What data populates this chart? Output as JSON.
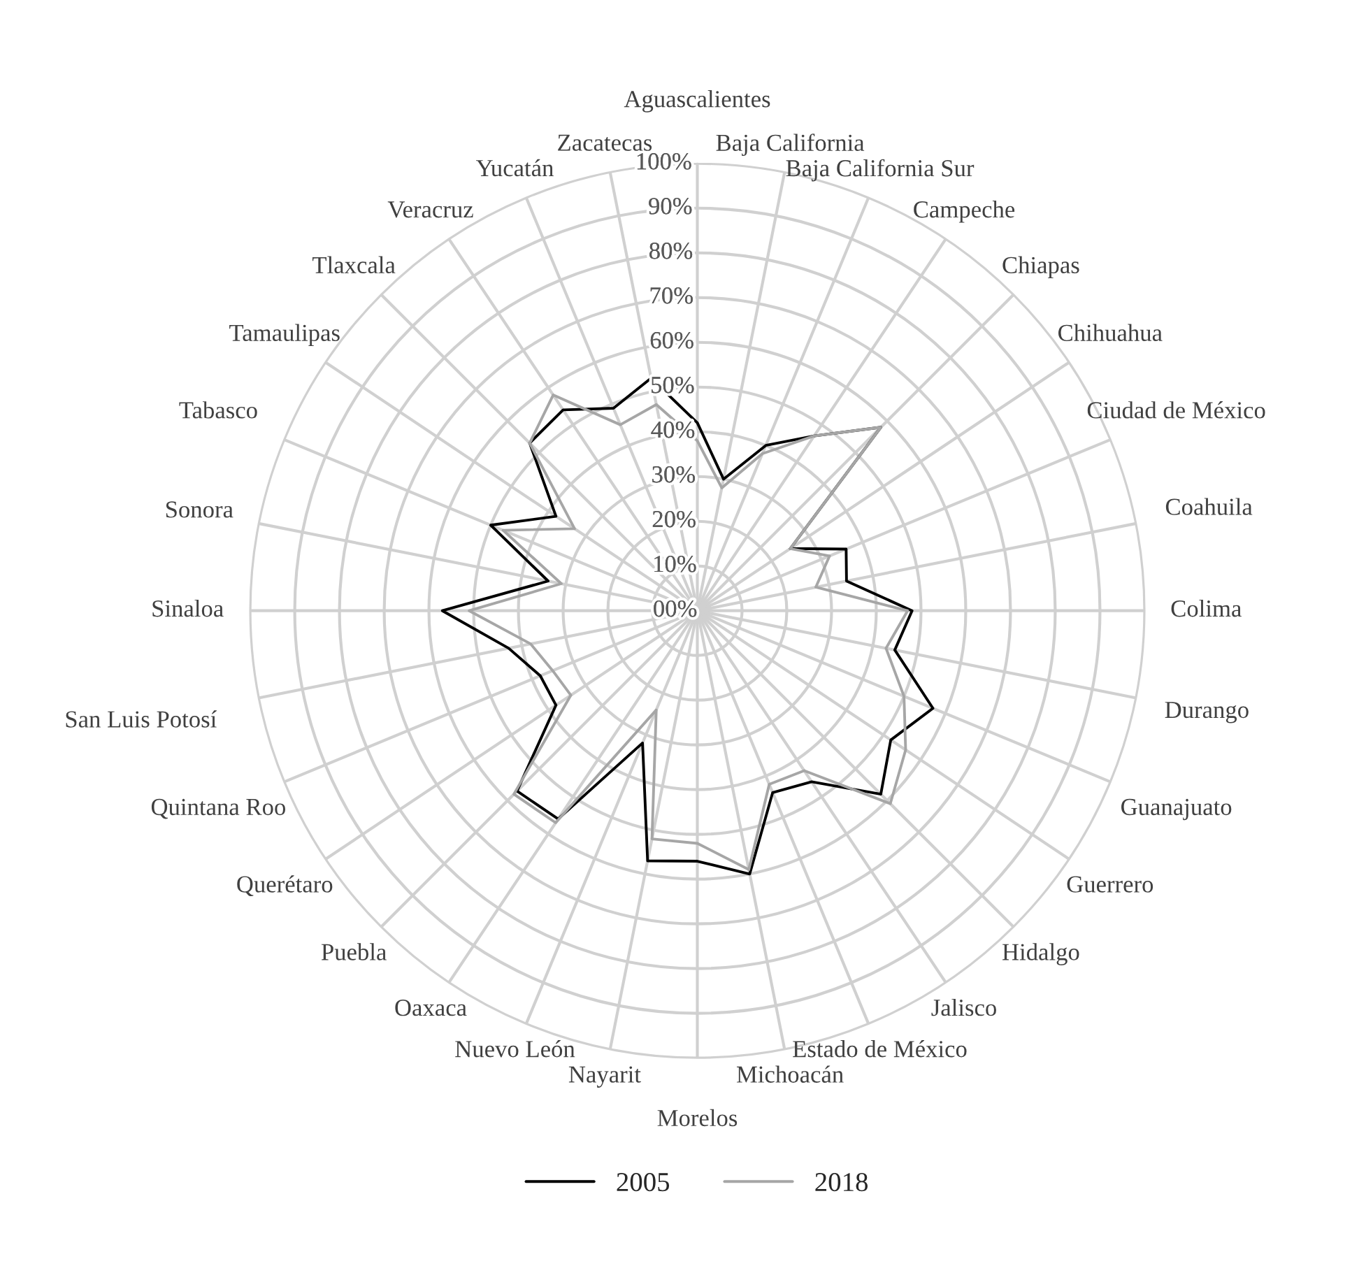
{
  "chart_data": {
    "type": "radar",
    "categories": [
      "Aguascalientes",
      "Baja California",
      "Baja California Sur",
      "Campeche",
      "Chiapas",
      "Chihuahua",
      "Ciudad de México",
      "Coahuila",
      "Colima",
      "Durango",
      "Guanajuato",
      "Guerrero",
      "Hidalgo",
      "Jalisco",
      "Estado de México",
      "Michoacán",
      "Morelos",
      "Nayarit",
      "Nuevo León",
      "Oaxaca",
      "Puebla",
      "Querétaro",
      "Quintana Roo",
      "San Luis Potosí",
      "Sinaloa",
      "Sonora",
      "Tabasco",
      "Tamaulipas",
      "Tlaxcala",
      "Veracruz",
      "Yucatán",
      "Zacatecas"
    ],
    "series": [
      {
        "name": "2005",
        "color": "#000000",
        "values": [
          42,
          30,
          40,
          47,
          58,
          25,
          36,
          34,
          48,
          45,
          57,
          52,
          58,
          46,
          44,
          60,
          56,
          57,
          32,
          56,
          57,
          38,
          38,
          43,
          57,
          34,
          50,
          38,
          53,
          54,
          49,
          53
        ]
      },
      {
        "name": "2018",
        "color": "#a6a6a6",
        "values": [
          38,
          28,
          38,
          47,
          58,
          25,
          32,
          27,
          47,
          43,
          50,
          56,
          61,
          43,
          42,
          59,
          52,
          52,
          24,
          57,
          58,
          34,
          35,
          38,
          51,
          31,
          47,
          33,
          53,
          58,
          45,
          47
        ]
      }
    ],
    "ylim": [
      0,
      100
    ],
    "yticks": [
      {
        "value": 0,
        "label": "00%"
      },
      {
        "value": 10,
        "label": "10%"
      },
      {
        "value": 20,
        "label": "20%"
      },
      {
        "value": 30,
        "label": "30%"
      },
      {
        "value": 40,
        "label": "40%"
      },
      {
        "value": 50,
        "label": "50%"
      },
      {
        "value": 60,
        "label": "60%"
      },
      {
        "value": 70,
        "label": "70%"
      },
      {
        "value": 80,
        "label": "80%"
      },
      {
        "value": 90,
        "label": "90%"
      },
      {
        "value": 100,
        "label": "100%"
      }
    ],
    "grid": true,
    "legend": "bottom",
    "marker": "none",
    "line_style": "solid"
  }
}
